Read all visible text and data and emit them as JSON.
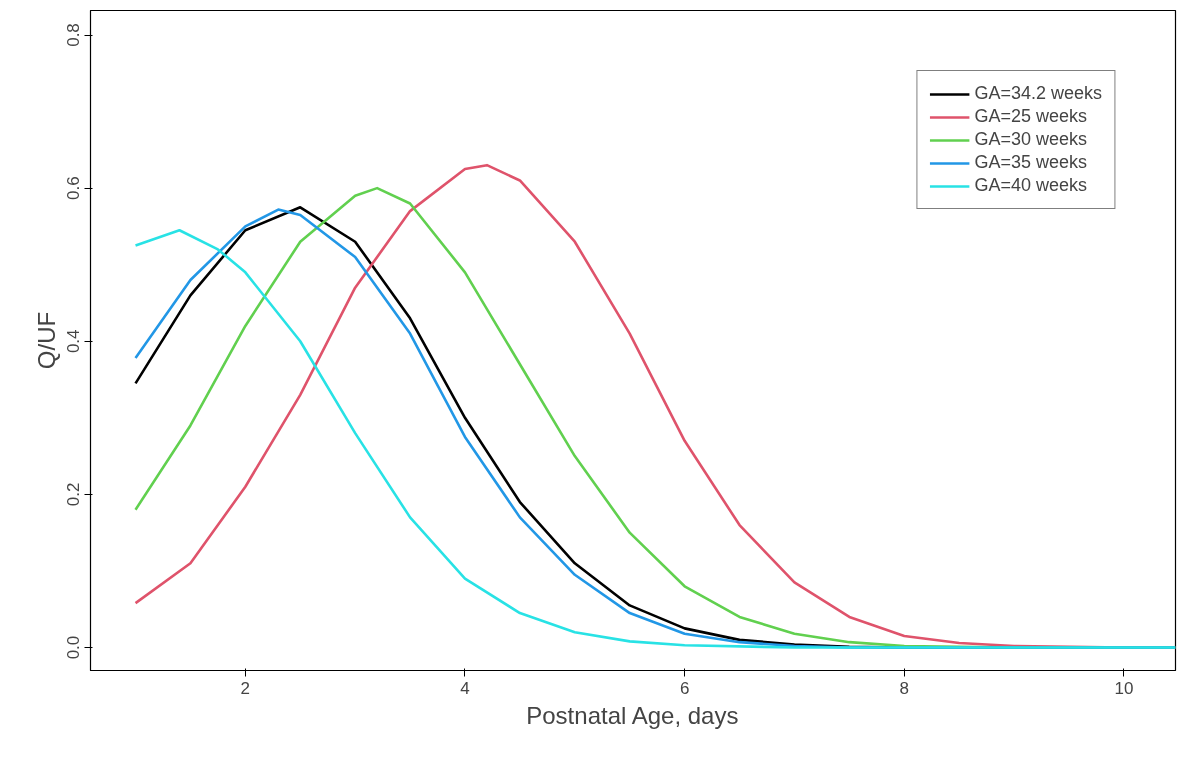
{
  "chart_data": {
    "type": "line",
    "xlabel": "Postnatal Age, days",
    "ylabel": "Q/UF",
    "xlim": [
      0.59,
      10.47
    ],
    "ylim": [
      -0.03,
      0.832
    ],
    "xticks": [
      2,
      4,
      6,
      8,
      10
    ],
    "yticks": [
      {
        "value": 0,
        "label": "0.0"
      },
      {
        "value": 0.2,
        "label": "0.2"
      },
      {
        "value": 0.4,
        "label": "0.4"
      },
      {
        "value": 0.6,
        "label": "0.6"
      },
      {
        "value": 0.8,
        "label": "0.8"
      }
    ],
    "grid": false,
    "legend": "top right",
    "marker": "none",
    "line_style": "solid",
    "series": [
      {
        "name": "GA=34.2 weeks",
        "color": "#000000",
        "x": [
          1,
          1.5,
          2,
          2.5,
          3,
          3.5,
          4,
          4.5,
          5,
          5.5,
          6,
          6.5,
          7,
          7.5,
          8,
          10.47
        ],
        "values": [
          0.345,
          0.46,
          0.545,
          0.575,
          0.53,
          0.43,
          0.3,
          0.19,
          0.11,
          0.055,
          0.025,
          0.01,
          0.004,
          0.001,
          0,
          0
        ]
      },
      {
        "name": "GA=25 weeks",
        "color": "#df536b",
        "x": [
          1,
          1.5,
          2,
          2.5,
          3,
          3.5,
          4,
          4.2,
          4.5,
          5,
          5.5,
          6,
          6.5,
          7,
          7.5,
          8,
          8.5,
          9,
          10,
          10.47
        ],
        "values": [
          0.058,
          0.11,
          0.21,
          0.33,
          0.47,
          0.57,
          0.625,
          0.63,
          0.61,
          0.53,
          0.41,
          0.27,
          0.16,
          0.085,
          0.04,
          0.015,
          0.006,
          0.002,
          0,
          0
        ]
      },
      {
        "name": "GA=30 weeks",
        "color": "#61d04f",
        "x": [
          1,
          1.5,
          2,
          2.5,
          3,
          3.2,
          3.5,
          4,
          4.5,
          5,
          5.5,
          6,
          6.5,
          7,
          7.5,
          8,
          9,
          10.47
        ],
        "values": [
          0.18,
          0.29,
          0.42,
          0.53,
          0.59,
          0.6,
          0.58,
          0.49,
          0.37,
          0.25,
          0.15,
          0.08,
          0.04,
          0.018,
          0.007,
          0.002,
          0,
          0
        ]
      },
      {
        "name": "GA=35 weeks",
        "color": "#2297e6",
        "x": [
          1,
          1.5,
          2,
          2.3,
          2.5,
          3,
          3.5,
          4,
          4.5,
          5,
          5.5,
          6,
          6.5,
          7,
          7.5,
          10.47
        ],
        "values": [
          0.378,
          0.48,
          0.55,
          0.572,
          0.565,
          0.51,
          0.41,
          0.275,
          0.17,
          0.095,
          0.045,
          0.018,
          0.007,
          0.002,
          0,
          0
        ]
      },
      {
        "name": "GA=40 weeks",
        "color": "#28e2e5",
        "x": [
          1,
          1.4,
          1.75,
          2,
          2.5,
          3,
          3.5,
          4,
          4.5,
          5,
          5.5,
          6,
          7,
          10.47
        ],
        "values": [
          0.525,
          0.545,
          0.52,
          0.49,
          0.4,
          0.28,
          0.17,
          0.09,
          0.045,
          0.02,
          0.008,
          0.003,
          0,
          0
        ]
      }
    ]
  }
}
